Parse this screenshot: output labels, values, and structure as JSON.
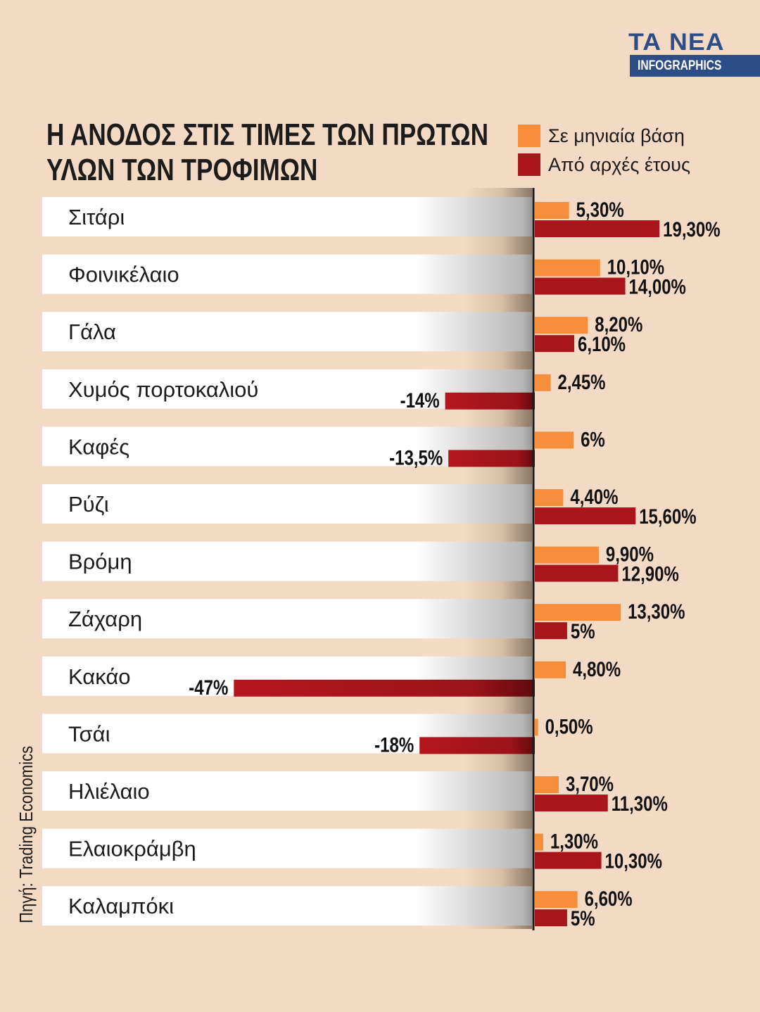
{
  "logo": {
    "brand": "ΤΑ ΝΕΑ",
    "section": "INFOGRAPHICS"
  },
  "headline": {
    "line1": "Η ΑΝΟΔΟΣ ΣΤΙΣ ΤΙΜΕΣ ΤΩΝ ΠΡΩΤΩΝ",
    "line2": "ΥΛΩΝ ΤΩΝ ΤΡΟΦΙΜΩΝ"
  },
  "source": "Πηγή: Trading Economics",
  "colors": {
    "monthly": "#f58d3a",
    "ytd": "#a8151b",
    "background": "#f2dac4"
  },
  "chart_data": {
    "type": "bar",
    "orientation": "horizontal",
    "title": "Η ΑΝΟΔΟΣ ΣΤΙΣ ΤΙΜΕΣ ΤΩΝ ΠΡΩΤΩΝ ΥΛΩΝ ΤΩΝ ΤΡΟΦΙΜΩΝ",
    "unit": "%",
    "legend_position": "top-right",
    "categories": [
      "Σιτάρι",
      "Φοινικέλαιο",
      "Γάλα",
      "Χυμός πορτοκαλιού",
      "Καφές",
      "Ρύζι",
      "Βρόμη",
      "Ζάχαρη",
      "Κακάο",
      "Τσάι",
      "Ηλιέλαιο",
      "Ελαιοκράμβη",
      "Καλαμπόκι"
    ],
    "series": [
      {
        "name": "Σε μηνιαία βάση",
        "values": [
          5.3,
          10.1,
          8.2,
          2.45,
          6,
          4.4,
          9.9,
          13.3,
          4.8,
          0.5,
          3.7,
          1.3,
          6.6
        ],
        "labels": [
          "5,30%",
          "10,10%",
          "8,20%",
          "2,45%",
          "6%",
          "4,40%",
          "9,90%",
          "13,30%",
          "4,80%",
          "0,50%",
          "3,70%",
          "1,30%",
          "6,60%"
        ]
      },
      {
        "name": "Από αρχές έτους",
        "values": [
          19.3,
          14.0,
          6.1,
          -14,
          -13.5,
          15.6,
          12.9,
          5,
          -47,
          -18,
          11.3,
          10.3,
          5
        ],
        "labels": [
          "19,30%",
          "14,00%",
          "6,10%",
          "-14%",
          "-13,5%",
          "15,60%",
          "12,90%",
          "5%",
          "-47%",
          "-18%",
          "11,30%",
          "10,30%",
          "5%"
        ]
      }
    ]
  }
}
